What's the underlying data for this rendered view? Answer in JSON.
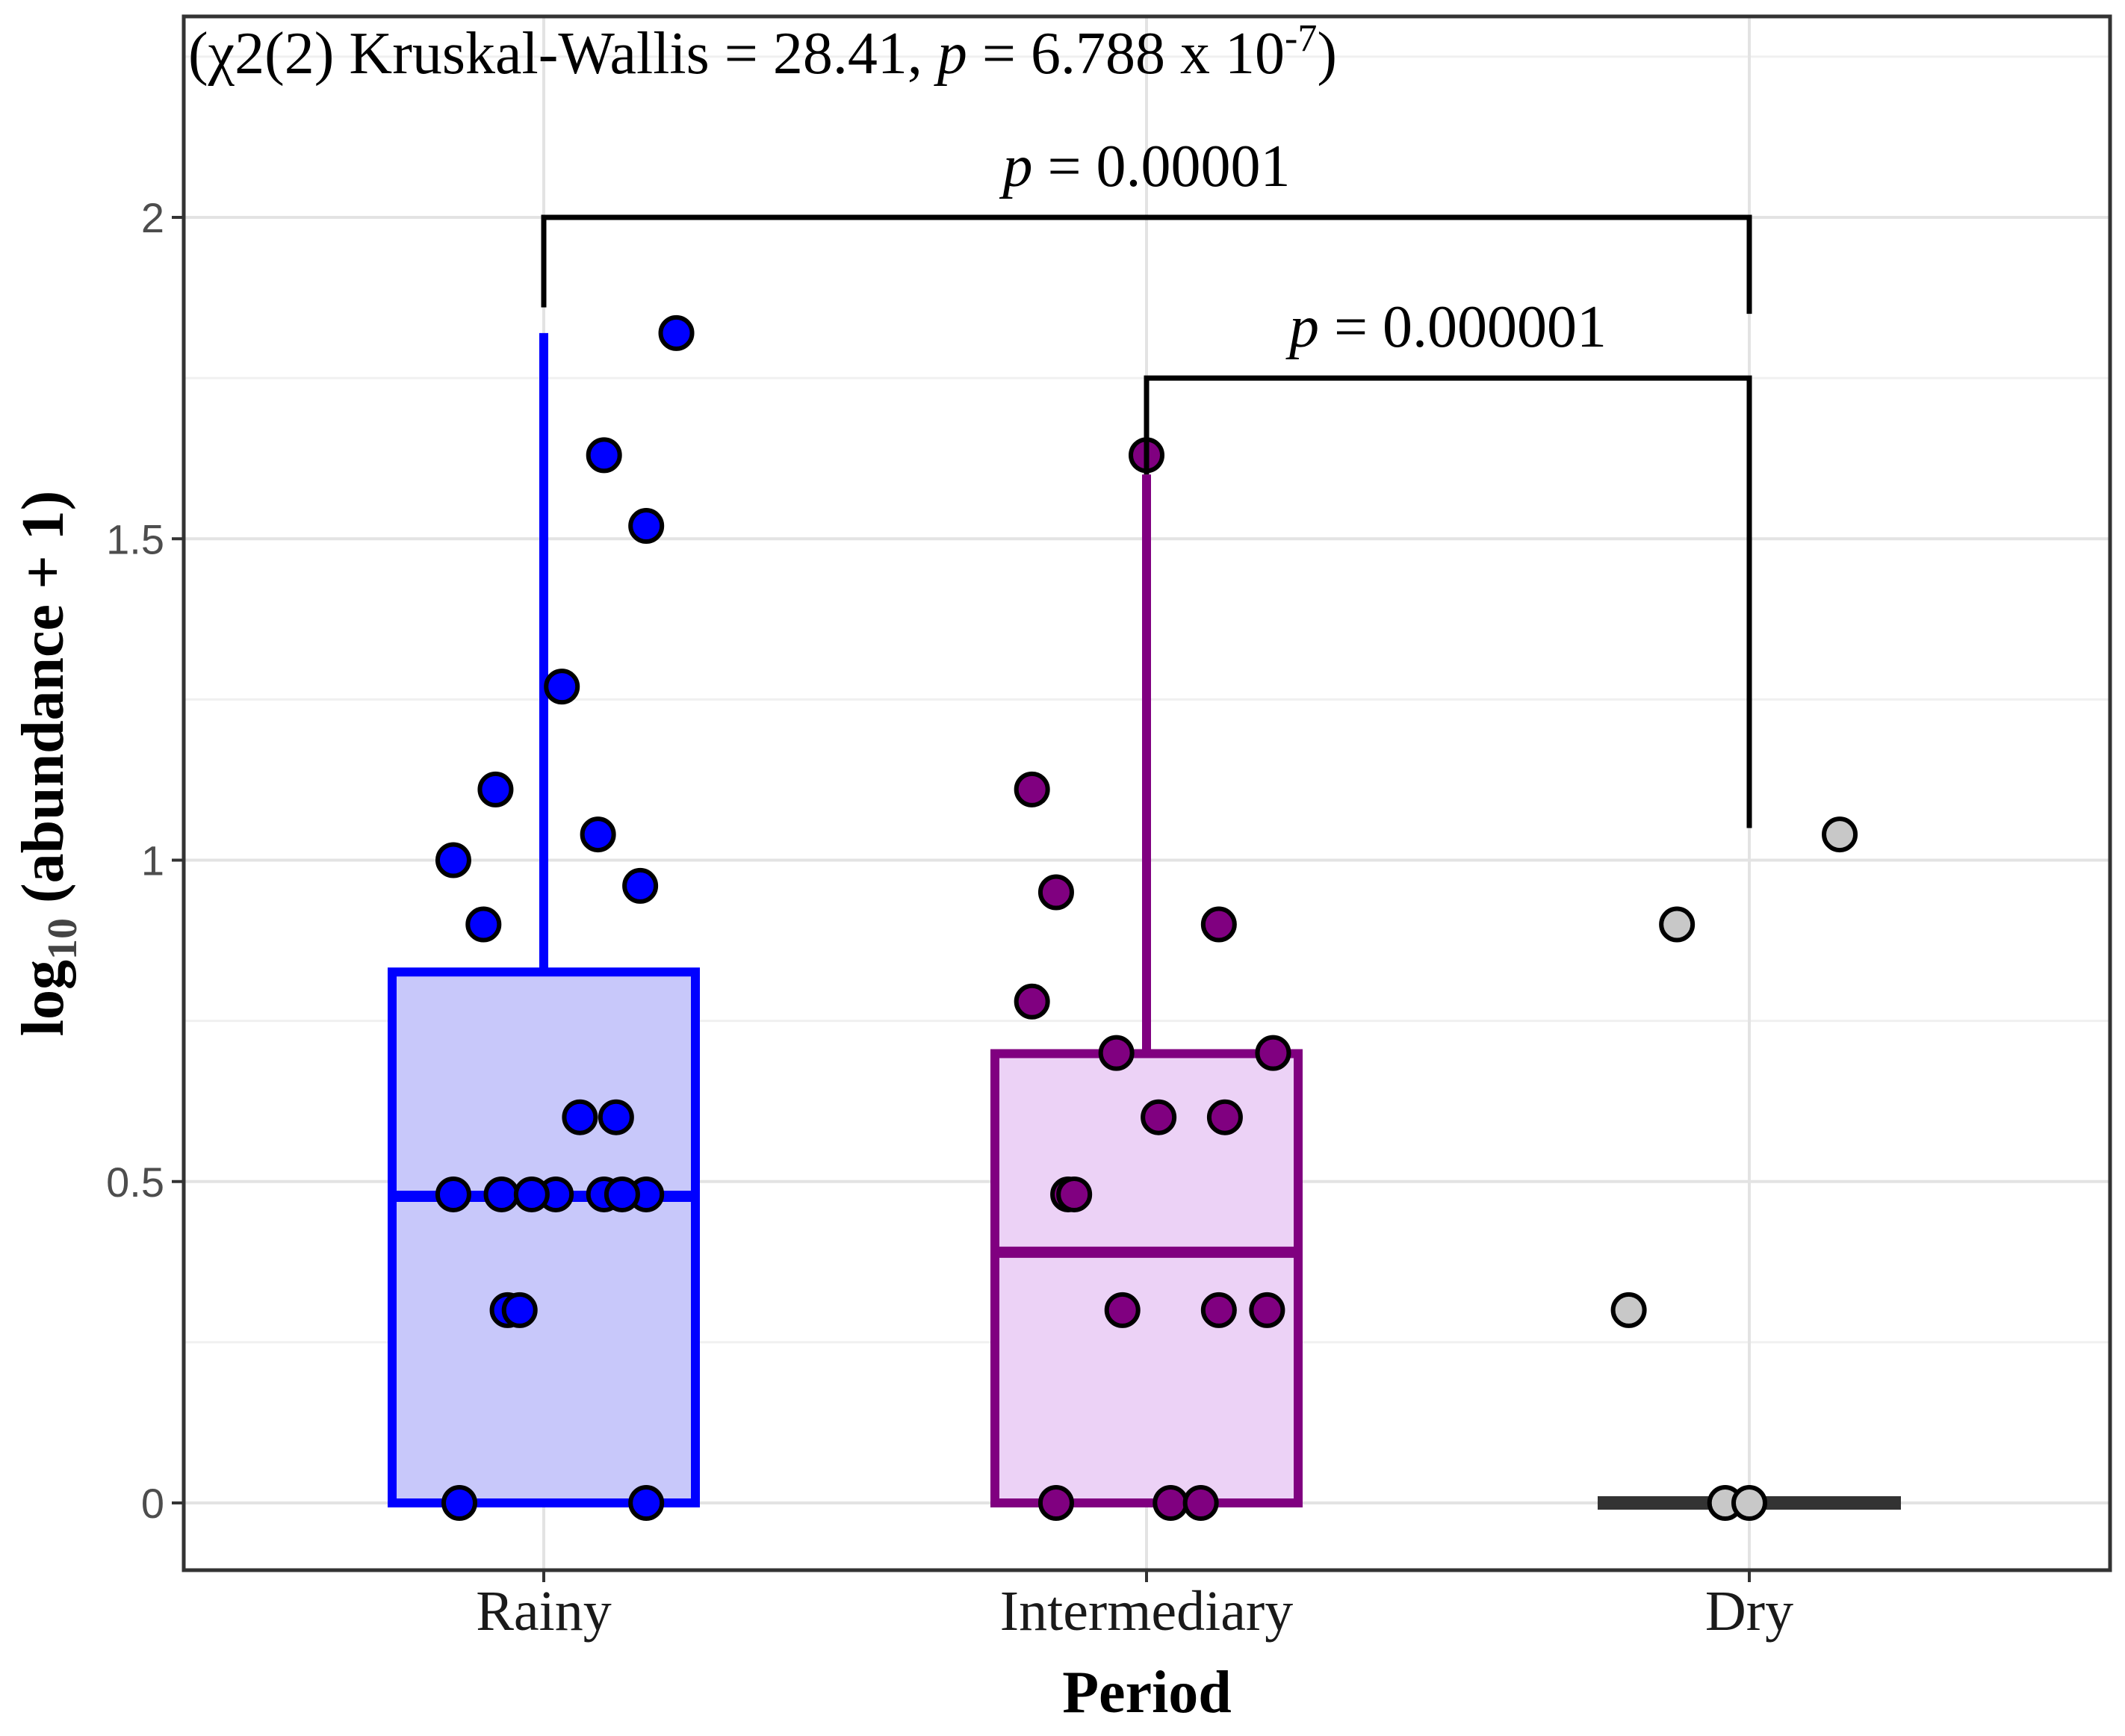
{
  "chart_data": {
    "type": "box",
    "title": "",
    "xlabel": "Period",
    "ylabel": {
      "prefix": "log",
      "subscript": "10",
      "suffix": " (abundance + 1)"
    },
    "ylim": [
      -0.1,
      2.3
    ],
    "yticks": [
      0,
      0.5,
      1,
      1.5,
      2
    ],
    "ytick_labels": [
      "0",
      "0.5",
      "1",
      "1.5",
      "2"
    ],
    "grid": true,
    "legend": "none",
    "categories": [
      "Rainy",
      "Intermediary",
      "Dry"
    ],
    "boxes": [
      {
        "category": "Rainy",
        "q1": 0,
        "median": 0.477,
        "q3": 0.826,
        "whisker_low": 0,
        "whisker_high": 1.82,
        "edge_color": "#0000ff",
        "fill_color": "#c8c8fa"
      },
      {
        "category": "Intermediary",
        "q1": 0,
        "median": 0.39,
        "q3": 0.699,
        "whisker_low": 0,
        "whisker_high": 1.6,
        "edge_color": "#800080",
        "fill_color": "#ecd2f6"
      },
      {
        "category": "Dry",
        "q1": 0,
        "median": 0,
        "q3": 0,
        "whisker_low": 0,
        "whisker_high": 0,
        "edge_color": "#333333",
        "fill_color": "#333333"
      }
    ],
    "points": [
      {
        "category": "Rainy",
        "color": "#0000ff",
        "values": [
          1.82,
          1.63,
          1.52,
          1.27,
          1.11,
          1.04,
          1.0,
          0.96,
          0.9,
          0.6,
          0.6,
          0.48,
          0.48,
          0.48,
          0.48,
          0.48,
          0.48,
          0.48,
          0.3,
          0.3,
          0,
          0
        ],
        "jitter": [
          0.22,
          0.1,
          0.17,
          0.03,
          -0.08,
          0.09,
          -0.15,
          0.16,
          -0.1,
          0.06,
          0.12,
          -0.15,
          -0.07,
          0.02,
          0.1,
          0.17,
          -0.02,
          0.13,
          -0.06,
          -0.04,
          -0.14,
          0.17
        ]
      },
      {
        "category": "Intermediary",
        "color": "#800080",
        "values": [
          1.63,
          1.11,
          0.95,
          0.9,
          0.78,
          0.7,
          0.7,
          0.6,
          0.6,
          0.48,
          0.48,
          0.3,
          0.3,
          0.3,
          0,
          0,
          0
        ],
        "jitter": [
          0.0,
          -0.19,
          -0.15,
          0.12,
          -0.19,
          -0.05,
          0.21,
          0.02,
          0.13,
          -0.13,
          -0.12,
          -0.04,
          0.2,
          0.12,
          -0.15,
          0.04,
          0.09
        ]
      },
      {
        "category": "Dry",
        "color": "#c8c8c8",
        "values": [
          1.04,
          0.9,
          0.3,
          0,
          0
        ],
        "jitter": [
          0.15,
          -0.12,
          -0.2,
          -0.04,
          0.0
        ]
      }
    ],
    "annotations": {
      "kruskal": {
        "open": "(χ2(2) Kruskal-Wallis = 28.41, ",
        "p_symbol": "p",
        "mid": " = 6.788 x 10",
        "exponent": "-7",
        "close": ")"
      },
      "brackets": [
        {
          "from": "Rainy",
          "to": "Dry",
          "p_symbol": "p",
          "label": " = 0.00001",
          "y_top": 2.0,
          "left_tip": 1.86,
          "right_tip": 1.85
        },
        {
          "from": "Intermediary",
          "to": "Dry",
          "p_symbol": "p",
          "label": " = 0.000001",
          "y_top": 1.75,
          "left_tip": 1.6,
          "right_tip": 1.05
        }
      ]
    }
  }
}
